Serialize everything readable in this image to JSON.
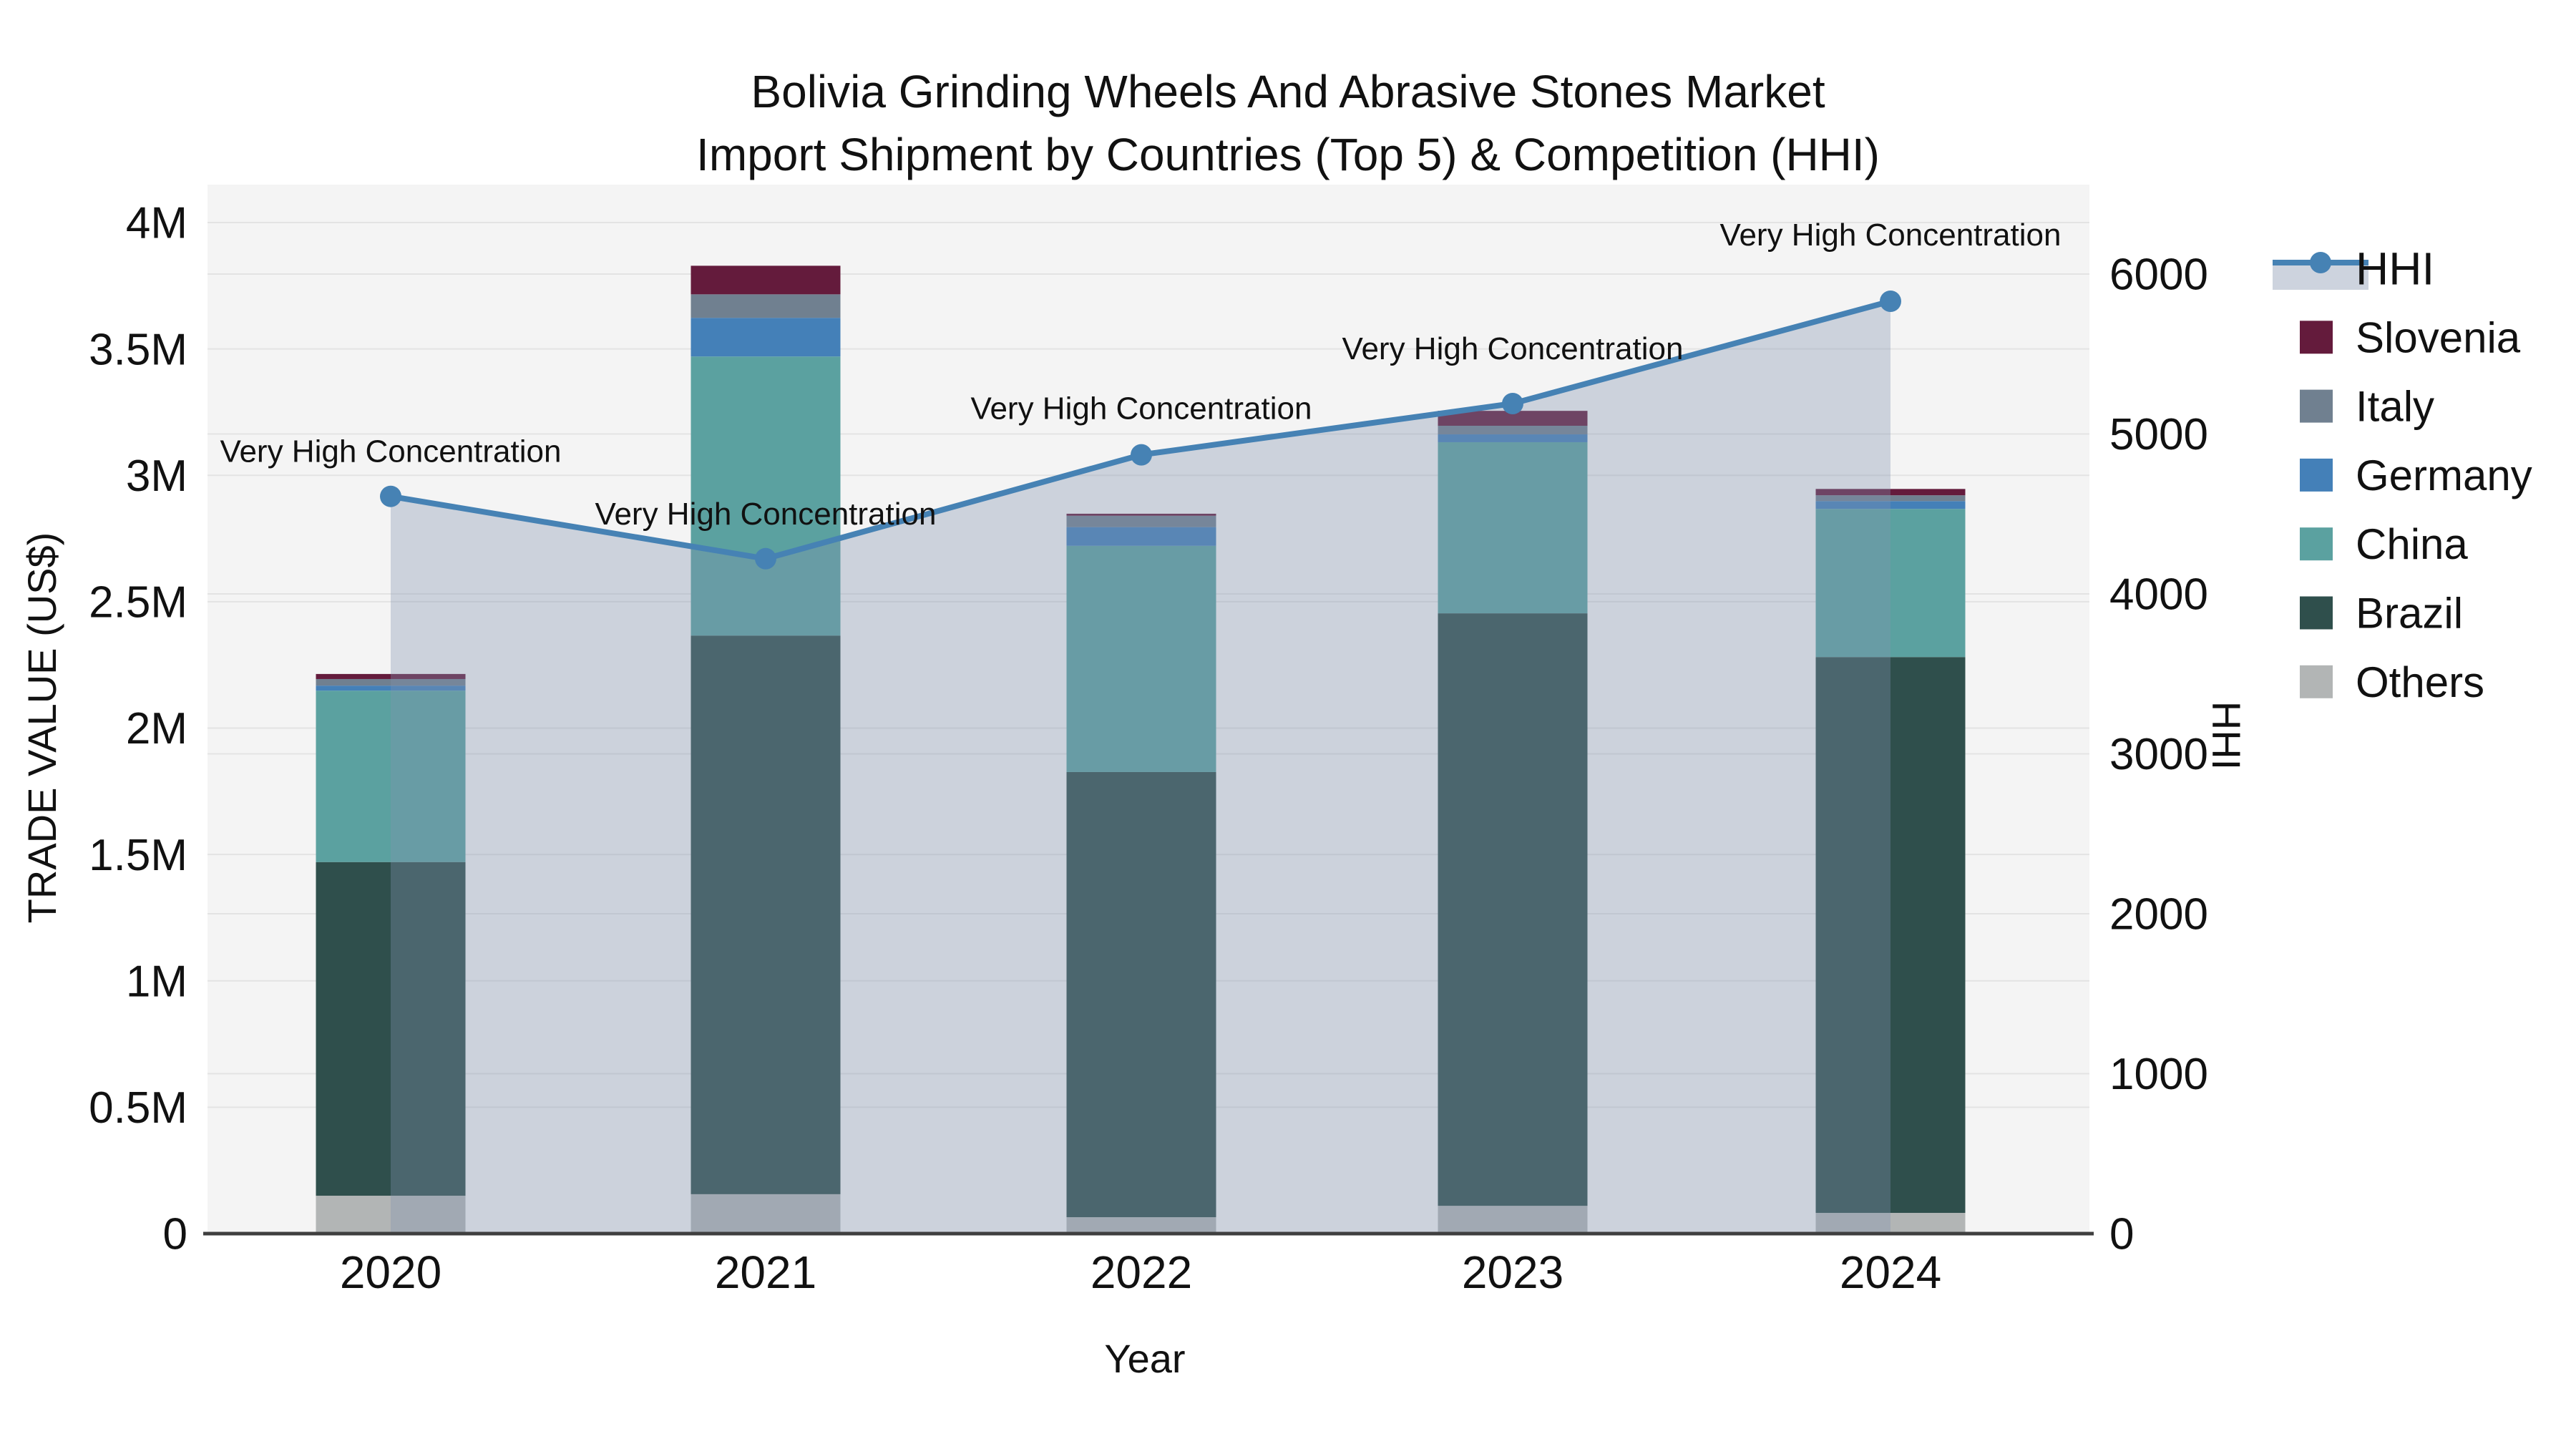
{
  "title": {
    "line1": "Bolivia Grinding Wheels And Abrasive Stones Market",
    "line2": "Import Shipment by Countries (Top 5) & Competition (HHI)"
  },
  "axes": {
    "x": {
      "title": "Year",
      "categories": [
        "2020",
        "2021",
        "2022",
        "2023",
        "2024"
      ]
    },
    "y_left": {
      "title": "TRADE VALUE (US$)",
      "max": 4000000,
      "ticks": [
        {
          "label": "0",
          "value": 0
        },
        {
          "label": "0.5M",
          "value": 500000
        },
        {
          "label": "1M",
          "value": 1000000
        },
        {
          "label": "1.5M",
          "value": 1500000
        },
        {
          "label": "2M",
          "value": 2000000
        },
        {
          "label": "2.5M",
          "value": 2500000
        },
        {
          "label": "3M",
          "value": 3000000
        },
        {
          "label": "3.5M",
          "value": 3500000
        },
        {
          "label": "4M",
          "value": 4000000
        }
      ]
    },
    "y_right": {
      "title": "HHI",
      "max": 6000,
      "ticks": [
        {
          "label": "0",
          "value": 0
        },
        {
          "label": "1000",
          "value": 1000
        },
        {
          "label": "2000",
          "value": 2000
        },
        {
          "label": "3000",
          "value": 3000
        },
        {
          "label": "4000",
          "value": 4000
        },
        {
          "label": "5000",
          "value": 5000
        },
        {
          "label": "6000",
          "value": 6000
        }
      ]
    }
  },
  "legend": {
    "items": [
      {
        "label": "HHI",
        "type": "line",
        "color": "#4682b4",
        "fill": "#cdd3de"
      },
      {
        "label": "Slovenia",
        "type": "swatch",
        "color": "#641b3c"
      },
      {
        "label": "Italy",
        "type": "swatch",
        "color": "#708090"
      },
      {
        "label": "Germany",
        "type": "swatch",
        "color": "#4480b8"
      },
      {
        "label": "China",
        "type": "swatch",
        "color": "#5ba1a0"
      },
      {
        "label": "Brazil",
        "type": "swatch",
        "color": "#2f4f4c"
      },
      {
        "label": "Others",
        "type": "swatch",
        "color": "#b2b5b5"
      }
    ]
  },
  "chart_data": {
    "type": "bar",
    "subtype": "stacked-bars-with-hhi-line-and-area",
    "title": "Bolivia Grinding Wheels And Abrasive Stones Market Import Shipment by Countries (Top 5) & Competition (HHI)",
    "xlabel": "Year",
    "ylabel_left": "TRADE VALUE (US$)",
    "ylabel_right": "HHI",
    "ylim_left": [
      0,
      4000000
    ],
    "ylim_right": [
      0,
      6000
    ],
    "grid": true,
    "legend_position": "right",
    "categories": [
      "2020",
      "2021",
      "2022",
      "2023",
      "2024"
    ],
    "series": [
      {
        "name": "Others",
        "color": "#b2b5b5",
        "values": [
          150000,
          156000,
          65000,
          110000,
          82000
        ]
      },
      {
        "name": "Brazil",
        "color": "#2f4f4c",
        "values": [
          1320000,
          2210000,
          1761000,
          2344000,
          2199000
        ]
      },
      {
        "name": "China",
        "color": "#5ba1a0",
        "values": [
          678000,
          1104000,
          895000,
          677000,
          586000
        ]
      },
      {
        "name": "Germany",
        "color": "#4480b8",
        "values": [
          20000,
          153000,
          74000,
          31000,
          31000
        ]
      },
      {
        "name": "Italy",
        "color": "#708090",
        "values": [
          26000,
          93000,
          45000,
          34000,
          23000
        ]
      },
      {
        "name": "Slovenia",
        "color": "#641b3c",
        "values": [
          20000,
          113000,
          8000,
          59000,
          25000
        ]
      }
    ],
    "bar_totals": [
      2214000,
      3829000,
      2848000,
      3255000,
      2946000
    ],
    "line_series": {
      "name": "HHI",
      "axis": "right",
      "color": "#4682b4",
      "area_fill": "rgba(128,146,176,0.35)",
      "values": [
        4610,
        4220,
        4870,
        5190,
        5830
      ]
    },
    "annotations": [
      {
        "x": "2020",
        "text": "Very High Concentration"
      },
      {
        "x": "2021",
        "text": "Very High Concentration"
      },
      {
        "x": "2022",
        "text": "Very High Concentration"
      },
      {
        "x": "2023",
        "text": "Very High Concentration"
      },
      {
        "x": "2024",
        "text": "Very High Concentration"
      }
    ]
  },
  "colors": {
    "plot_background": "#f4f4f4",
    "page_background": "#ffffff",
    "gridline": "#e3e3e3",
    "axis_line": "#3f3f3f",
    "text": "#111111",
    "hhi_line": "#4682b4",
    "hhi_area_over_bg": "#cdd3de"
  }
}
